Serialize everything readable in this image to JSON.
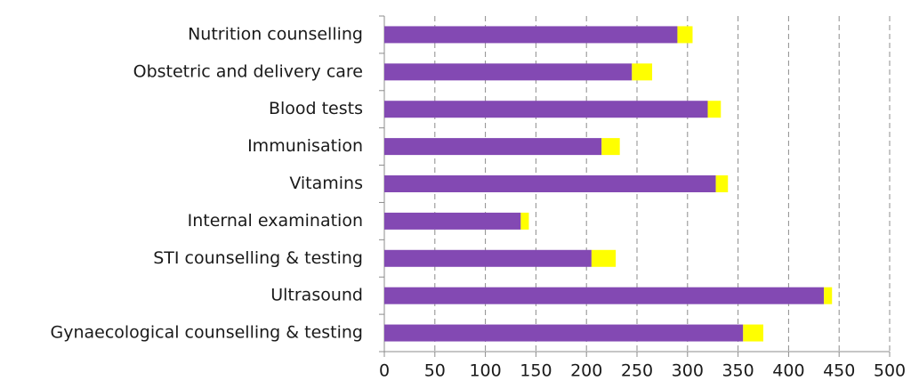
{
  "chart_data": {
    "type": "stacked-bar-horizontal",
    "categories": [
      "Nutrition counselling",
      "Obstetric and delivery care",
      "Blood tests",
      "Immunisation",
      "Vitamins",
      "Internal examination",
      "STI counselling & testing",
      "Ultrasound",
      "Gynaecological counselling & testing"
    ],
    "series": [
      {
        "color": "#8349b3",
        "values": [
          290,
          245,
          320,
          215,
          328,
          135,
          205,
          435,
          355
        ]
      },
      {
        "color": "#ffff00",
        "values": [
          15,
          20,
          13,
          18,
          12,
          8,
          24,
          8,
          20
        ]
      }
    ],
    "xlim": [
      0,
      500
    ],
    "xticks": [
      0,
      50,
      100,
      150,
      200,
      250,
      300,
      350,
      400,
      450,
      500
    ],
    "grid": true
  }
}
